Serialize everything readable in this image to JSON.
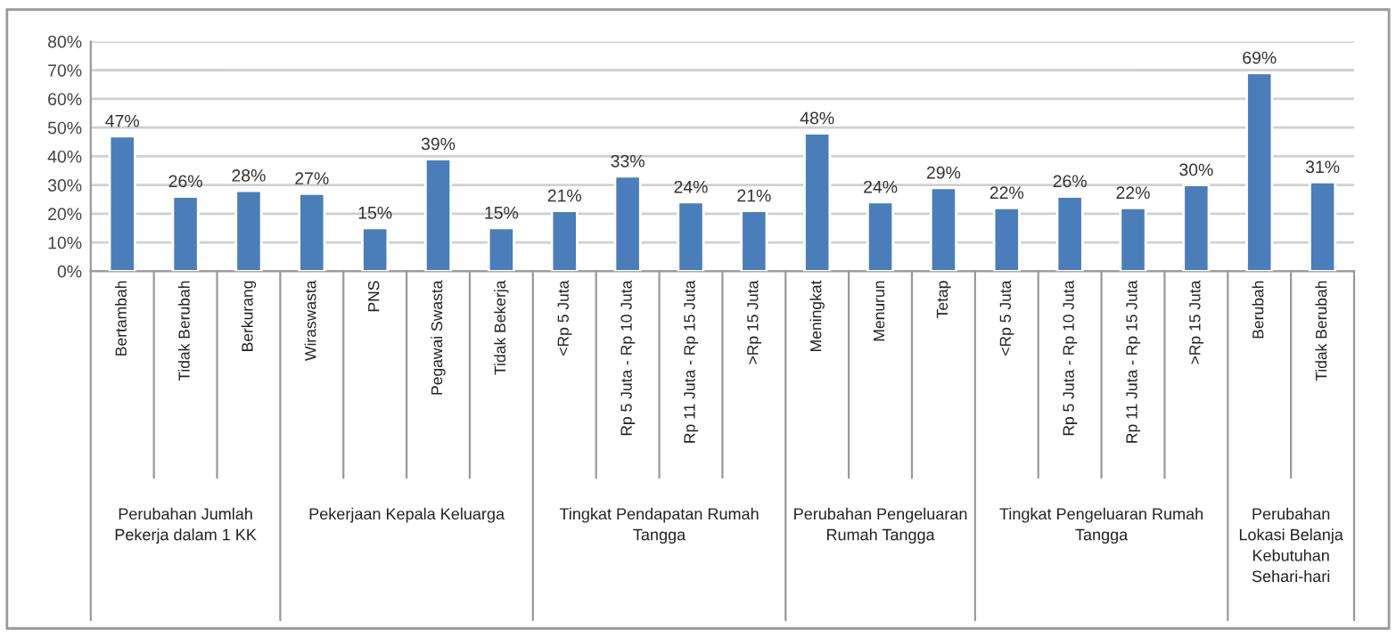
{
  "chart_data": {
    "type": "bar",
    "categories": [
      "Bertambah",
      "Tidak Berubah",
      "Berkurang",
      "Wiraswasta",
      "PNS",
      "Pegawai Swasta",
      "Tidak Bekerja",
      "<Rp 5 Juta",
      "Rp 5 Juta - Rp 10 Juta",
      "Rp 11 Juta - Rp 15 Juta",
      ">Rp 15 Juta",
      "Meningkat",
      "Menurun",
      "Tetap",
      "<Rp 5 Juta",
      "Rp 5 Juta - Rp 10 Juta",
      "Rp 11 Juta - Rp 15 Juta",
      ">Rp 15 Juta",
      "Berubah",
      "Tidak Berubah"
    ],
    "values": [
      47,
      26,
      28,
      27,
      15,
      39,
      15,
      21,
      33,
      24,
      21,
      48,
      24,
      29,
      22,
      26,
      22,
      30,
      69,
      31
    ],
    "value_labels": [
      "47%",
      "26%",
      "28%",
      "27%",
      "15%",
      "39%",
      "15%",
      "21%",
      "33%",
      "24%",
      "21%",
      "48%",
      "24%",
      "29%",
      "22%",
      "26%",
      "22%",
      "30%",
      "69%",
      "31%"
    ],
    "color": "#4a7ebb",
    "ylim": [
      0,
      80
    ],
    "yticks": [
      {
        "value": 0,
        "label": "0%"
      },
      {
        "value": 10,
        "label": "10%"
      },
      {
        "value": 20,
        "label": "20%"
      },
      {
        "value": 30,
        "label": "30%"
      },
      {
        "value": 40,
        "label": "40%"
      },
      {
        "value": 50,
        "label": "50%"
      },
      {
        "value": 60,
        "label": "60%"
      },
      {
        "value": 70,
        "label": "70%"
      },
      {
        "value": 80,
        "label": "80%"
      }
    ],
    "grid": "y",
    "annotations": [
      "Perubahan Jumlah Pekerja dalam 1 KK",
      "Pekerjaan Kepala Keluarga",
      "Tingkat Pendapatan Rumah Tangga",
      "Perubahan Pengeluaran Rumah Tangga",
      "Tingkat Pengeluaran Rumah Tangga",
      "Perubahan Lokasi Belanja Kebutuhan Sehari-hari"
    ]
  }
}
